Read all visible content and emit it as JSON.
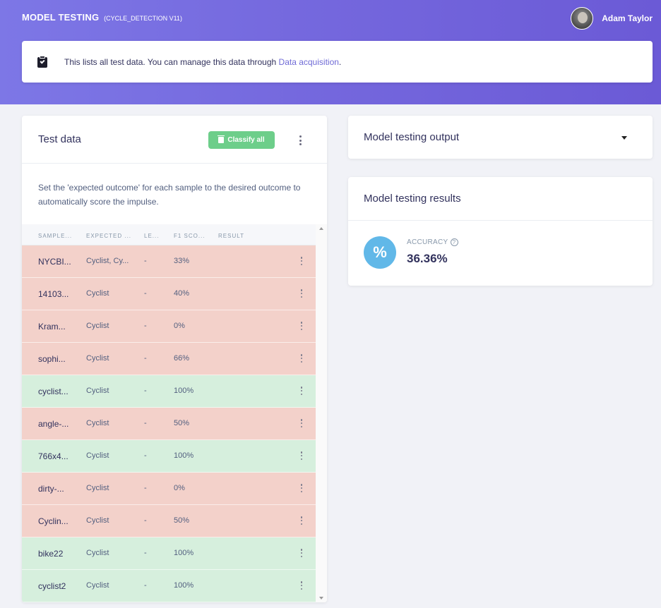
{
  "header": {
    "title": "MODEL TESTING",
    "subtitle": "(CYCLE_DETECTION V11)",
    "user_name": "Adam Taylor"
  },
  "info": {
    "text": "This lists all test data. You can manage this data through ",
    "link": "Data acquisition",
    "suffix": "."
  },
  "test_data": {
    "title": "Test data",
    "classify_label": "Classify all",
    "description": "Set the 'expected outcome' for each sample to the desired outcome to automatically score the impulse.",
    "columns": [
      "SAMPLE...",
      "EXPECTED ...",
      "LE...",
      "F1 SCO...",
      "RESULT"
    ],
    "rows": [
      {
        "sample": "NYCBI...",
        "expected": "Cyclist, Cy...",
        "length": "-",
        "f1": "33%",
        "status": "bad"
      },
      {
        "sample": "14103...",
        "expected": "Cyclist",
        "length": "-",
        "f1": "40%",
        "status": "bad"
      },
      {
        "sample": "Kram...",
        "expected": "Cyclist",
        "length": "-",
        "f1": "0%",
        "status": "bad"
      },
      {
        "sample": "sophi...",
        "expected": "Cyclist",
        "length": "-",
        "f1": "66%",
        "status": "bad"
      },
      {
        "sample": "cyclist...",
        "expected": "Cyclist",
        "length": "-",
        "f1": "100%",
        "status": "good"
      },
      {
        "sample": "angle-...",
        "expected": "Cyclist",
        "length": "-",
        "f1": "50%",
        "status": "bad"
      },
      {
        "sample": "766x4...",
        "expected": "Cyclist",
        "length": "-",
        "f1": "100%",
        "status": "good"
      },
      {
        "sample": "dirty-...",
        "expected": "Cyclist",
        "length": "-",
        "f1": "0%",
        "status": "bad"
      },
      {
        "sample": "Cyclin...",
        "expected": "Cyclist",
        "length": "-",
        "f1": "50%",
        "status": "bad"
      },
      {
        "sample": "bike22",
        "expected": "Cyclist",
        "length": "-",
        "f1": "100%",
        "status": "good"
      },
      {
        "sample": "cyclist2",
        "expected": "Cyclist",
        "length": "-",
        "f1": "100%",
        "status": "good"
      }
    ]
  },
  "output": {
    "title": "Model testing output"
  },
  "results": {
    "title": "Model testing results",
    "accuracy_symbol": "%",
    "accuracy_label": "ACCURACY",
    "help_symbol": "?",
    "accuracy_value": "36.36%"
  },
  "colors": {
    "header_gradient_start": "#7d77e6",
    "header_gradient_end": "#6b5ad6",
    "bad_row": "#f3d1ca",
    "good_row": "#d6efdd",
    "classify_button": "#6dce8a",
    "accuracy_circle": "#61b8e8"
  }
}
